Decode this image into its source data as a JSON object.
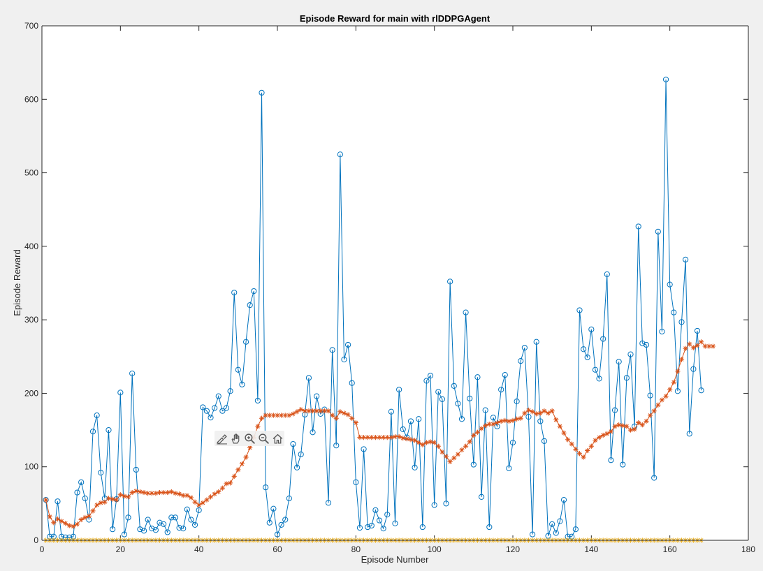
{
  "toolbar": {
    "icons": [
      "brush-icon",
      "pan-hand-icon",
      "zoom-in-icon",
      "zoom-out-icon",
      "home-icon"
    ]
  },
  "colors": {
    "episode_reward": "#0072BD",
    "average_reward": "#D95319",
    "episode_q0": "#EDB120",
    "axes_background": "#ffffff",
    "figure_background": "#f0f0f0"
  },
  "chart_data": {
    "type": "line",
    "title": "Episode Reward for main with rlDDPGAgent",
    "xlabel": "Episode Number",
    "ylabel": "Episode Reward",
    "xlim": [
      0,
      180
    ],
    "ylim": [
      0,
      700
    ],
    "xticks": [
      0,
      20,
      40,
      60,
      80,
      100,
      120,
      140,
      160,
      180
    ],
    "yticks": [
      0,
      100,
      200,
      300,
      400,
      500,
      600,
      700
    ],
    "grid": false,
    "legend": "none",
    "series": [
      {
        "marker": "circle",
        "values": [
          55,
          5,
          5,
          53,
          5,
          4,
          4,
          5,
          65,
          79,
          57,
          28,
          148,
          170,
          92,
          57,
          150,
          15,
          56,
          201,
          8,
          31,
          227,
          96,
          15,
          13,
          28,
          16,
          14,
          24,
          22,
          11,
          31,
          31,
          17,
          16,
          42,
          28,
          21,
          41,
          181,
          176,
          167,
          180,
          196,
          176,
          180,
          203,
          337,
          232,
          212,
          270,
          320,
          339,
          190,
          609,
          72,
          24,
          43,
          8,
          21,
          28,
          57,
          131,
          99,
          117,
          171,
          221,
          147,
          196,
          172,
          178,
          51,
          259,
          129,
          525,
          246,
          266,
          214,
          79,
          17,
          124,
          18,
          20,
          41,
          27,
          16,
          35,
          175,
          23,
          205,
          151,
          140,
          162,
          99,
          165,
          18,
          217,
          224,
          48,
          202,
          192,
          50,
          352,
          210,
          186,
          165,
          310,
          193,
          103,
          222,
          59,
          177,
          18,
          167,
          155,
          205,
          225,
          98,
          133,
          189,
          244,
          262,
          168,
          8,
          270,
          162,
          135,
          6,
          22,
          10,
          26,
          55,
          5,
          5,
          15,
          313,
          260,
          249,
          287,
          232,
          220,
          274,
          362,
          109,
          177,
          243,
          103,
          221,
          253,
          155,
          427,
          268,
          266,
          197,
          85,
          420,
          284,
          627,
          348,
          310,
          203,
          297,
          382,
          145,
          233,
          285,
          204
        ]
      },
      {
        "marker": "asterisk",
        "values": [
          55,
          32,
          24,
          29,
          26,
          23,
          20,
          19,
          22,
          28,
          31,
          33,
          40,
          48,
          51,
          52,
          57,
          56,
          55,
          62,
          60,
          59,
          65,
          67,
          66,
          65,
          64,
          64,
          64,
          65,
          65,
          65,
          66,
          64,
          63,
          61,
          61,
          58,
          52,
          48,
          51,
          55,
          59,
          63,
          66,
          71,
          77,
          78,
          87,
          96,
          104,
          113,
          126,
          140,
          155,
          166,
          170,
          170,
          170,
          170,
          170,
          170,
          170,
          172,
          175,
          178,
          176,
          176,
          176,
          176,
          176,
          176,
          176,
          170,
          166,
          175,
          173,
          171,
          166,
          160,
          140,
          140,
          140,
          140,
          140,
          140,
          140,
          140,
          140,
          141,
          141,
          139,
          138,
          137,
          136,
          133,
          130,
          133,
          134,
          133,
          128,
          120,
          114,
          107,
          112,
          117,
          123,
          128,
          134,
          143,
          147,
          152,
          156,
          158,
          158,
          160,
          162,
          163,
          162,
          163,
          165,
          166,
          173,
          177,
          175,
          172,
          173,
          176,
          173,
          176,
          164,
          155,
          146,
          137,
          131,
          124,
          118,
          113,
          122,
          128,
          136,
          140,
          143,
          145,
          148,
          155,
          157,
          156,
          155,
          150,
          151,
          160,
          157,
          162,
          170,
          176,
          184,
          191,
          196,
          205,
          215,
          230,
          246,
          261,
          267,
          262,
          265,
          270,
          264,
          264,
          264
        ]
      },
      {
        "marker": "asterisk",
        "values": [
          0
        ]
      }
    ]
  }
}
